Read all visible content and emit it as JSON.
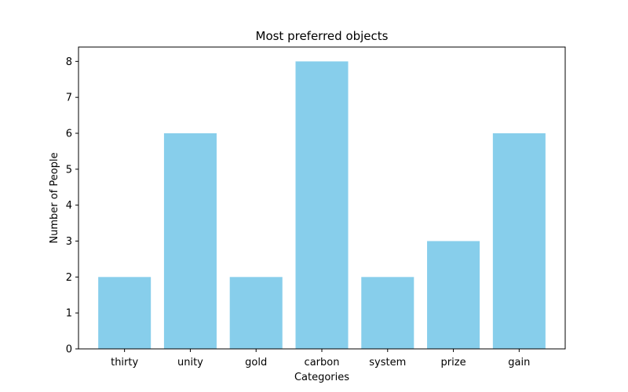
{
  "chart_data": {
    "type": "bar",
    "title": "Most preferred objects",
    "xlabel": "Categories",
    "ylabel": "Number of People",
    "categories": [
      "thirty",
      "unity",
      "gold",
      "carbon",
      "system",
      "prize",
      "gain"
    ],
    "values": [
      2,
      6,
      2,
      8,
      2,
      3,
      6
    ],
    "ylim": [
      0,
      8.4
    ],
    "yticks": [
      0,
      1,
      2,
      3,
      4,
      5,
      6,
      7,
      8
    ],
    "grid": false,
    "bar_color": "#87ceeb"
  }
}
